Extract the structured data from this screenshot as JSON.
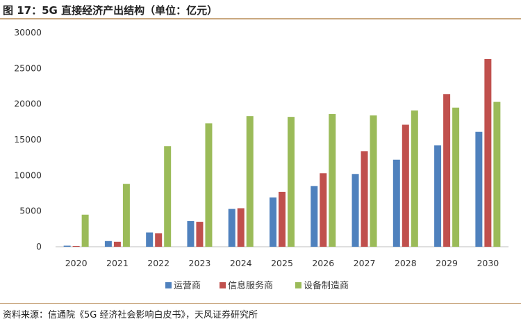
{
  "header": {
    "title": "图 17：5G 直接经济产出结构（单位：亿元）"
  },
  "footer": {
    "source": "资料来源：信通院《5G 经济社会影响白皮书》，天风证券研究所"
  },
  "colors": {
    "operator": "#4f81bd",
    "info_service": "#c0504d",
    "equipment": "#9bbb59",
    "accent": "#c9a77f"
  },
  "chart_data": {
    "type": "bar",
    "title": "",
    "xlabel": "",
    "ylabel": "",
    "ylim": [
      0,
      30000
    ],
    "yticks": [
      "30000",
      "25000",
      "20000",
      "15000",
      "10000",
      "5000",
      "0"
    ],
    "ytick_values": [
      30000,
      25000,
      20000,
      15000,
      10000,
      5000,
      0
    ],
    "categories": [
      "2020",
      "2021",
      "2022",
      "2023",
      "2024",
      "2025",
      "2026",
      "2027",
      "2028",
      "2029",
      "2030"
    ],
    "series": [
      {
        "name": "运营商",
        "color": "#4f81bd",
        "values": [
          150,
          800,
          2000,
          3600,
          5300,
          6900,
          8500,
          10200,
          12200,
          14200,
          16100
        ]
      },
      {
        "name": "信息服务商",
        "color": "#c0504d",
        "values": [
          80,
          700,
          1900,
          3500,
          5400,
          7700,
          10300,
          13400,
          17100,
          21400,
          26300
        ]
      },
      {
        "name": "设备制造商",
        "color": "#9bbb59",
        "values": [
          4500,
          8800,
          14100,
          17300,
          18300,
          18200,
          18600,
          18400,
          19100,
          19500,
          20300
        ]
      }
    ],
    "legend_position": "bottom"
  }
}
